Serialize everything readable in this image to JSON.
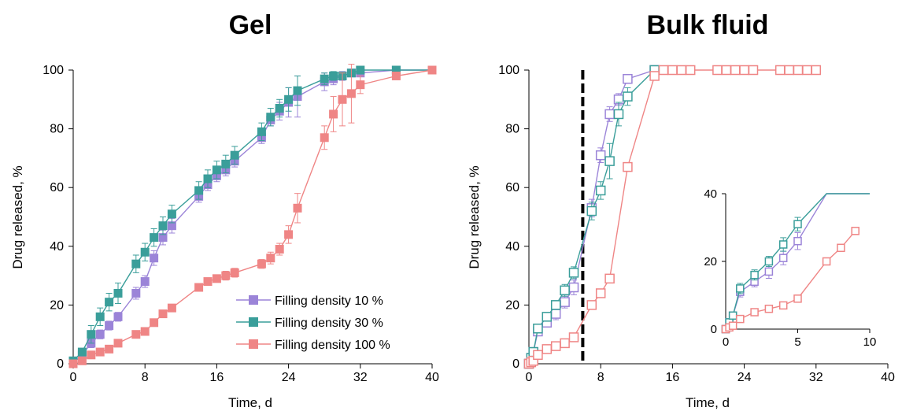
{
  "colors": {
    "fd10": "#9b84d8",
    "fd30": "#3a9e9a",
    "fd100": "#ef8585",
    "axis": "#000000",
    "vline": "#000000"
  },
  "chart_data": [
    {
      "type": "line",
      "title": "Gel",
      "xlabel": "Time, d",
      "ylabel": "Drug released, %",
      "xlim": [
        0,
        40
      ],
      "ylim": [
        0,
        100
      ],
      "xticks": [
        0,
        8,
        16,
        24,
        32,
        40
      ],
      "yticks": [
        0,
        20,
        40,
        60,
        80,
        100
      ],
      "grid": false,
      "marker": "filled-square",
      "legend_position": "bottom-right",
      "series": [
        {
          "name": "Filling density 10 %",
          "color_key": "fd10",
          "x": [
            0,
            1,
            2,
            3,
            4,
            5,
            7,
            8,
            9,
            10,
            11,
            14,
            15,
            16,
            17,
            18,
            21,
            22,
            23,
            24,
            25,
            28,
            29,
            30,
            31,
            32,
            36,
            40
          ],
          "y": [
            0,
            3,
            7,
            10,
            13,
            16,
            24,
            28,
            36,
            43,
            47,
            57,
            61,
            64,
            66,
            69,
            77,
            83,
            86,
            89,
            91,
            96,
            97,
            98,
            99,
            99,
            100,
            100
          ],
          "err": [
            0,
            1,
            1.5,
            1.5,
            1.5,
            1.5,
            2,
            2,
            2.5,
            2.5,
            2.5,
            2,
            2,
            2,
            2,
            2,
            2,
            2,
            3,
            5,
            7,
            3,
            2,
            1.5,
            1,
            1,
            0,
            0
          ]
        },
        {
          "name": "Filling density 30 %",
          "color_key": "fd30",
          "x": [
            0,
            1,
            2,
            3,
            4,
            5,
            7,
            8,
            9,
            10,
            11,
            14,
            15,
            16,
            17,
            18,
            21,
            22,
            23,
            24,
            25,
            28,
            29,
            30,
            31,
            32,
            36,
            40
          ],
          "y": [
            1,
            4,
            10,
            16,
            21,
            24,
            34,
            38,
            43,
            47,
            51,
            59,
            63,
            66,
            68,
            71,
            79,
            84,
            87,
            90,
            93,
            97,
            98,
            98,
            99,
            100,
            100,
            100
          ],
          "err": [
            0,
            1,
            3,
            3,
            3,
            3.5,
            3,
            3,
            3,
            3,
            3,
            3,
            3,
            3,
            3,
            3,
            3,
            3,
            3,
            4,
            5,
            2,
            1.5,
            1,
            1,
            0.5,
            0,
            0
          ]
        },
        {
          "name": "Filling density 100 %",
          "color_key": "fd100",
          "x": [
            0,
            1,
            2,
            3,
            4,
            5,
            7,
            8,
            9,
            10,
            11,
            14,
            15,
            16,
            17,
            18,
            21,
            22,
            23,
            24,
            25,
            28,
            29,
            30,
            31,
            32,
            36,
            40
          ],
          "y": [
            0,
            1,
            3,
            4,
            5,
            7,
            10,
            11,
            14,
            17,
            19,
            26,
            28,
            29,
            30,
            31,
            34,
            36,
            39,
            44,
            53,
            77,
            85,
            90,
            92,
            95,
            98,
            100
          ],
          "err": [
            0,
            0.5,
            0.5,
            0.5,
            0.5,
            0.5,
            1,
            1,
            1,
            1,
            1,
            1,
            1,
            1,
            1.5,
            1.5,
            1.5,
            2,
            2,
            3,
            5,
            4,
            6,
            9,
            10,
            3,
            1,
            0
          ]
        }
      ],
      "legend": [
        {
          "label": "Filling density 10 %",
          "color_key": "fd10"
        },
        {
          "label": "Filling density 30 %",
          "color_key": "fd30"
        },
        {
          "label": "Filling density 100 %",
          "color_key": "fd100"
        }
      ]
    },
    {
      "type": "line",
      "title": "Bulk fluid",
      "xlabel": "Time, d",
      "ylabel": "Drug released, %",
      "xlim": [
        0,
        40
      ],
      "ylim": [
        0,
        100
      ],
      "xticks": [
        0,
        8,
        16,
        24,
        32,
        40
      ],
      "yticks": [
        0,
        20,
        40,
        60,
        80,
        100
      ],
      "grid": false,
      "marker": "open-square",
      "vertical_line_x": 6,
      "series": [
        {
          "name": "Filling density 10 %",
          "color_key": "fd10",
          "x": [
            0,
            0.25,
            0.5,
            1,
            2,
            3,
            4,
            5,
            7,
            8,
            9,
            10,
            11,
            14
          ],
          "y": [
            0,
            2,
            4,
            11,
            14,
            17,
            21,
            26,
            53,
            71,
            85,
            90,
            97,
            100
          ],
          "err": [
            0,
            0.5,
            1,
            1.5,
            1.5,
            2,
            2,
            2.5,
            3,
            2.5,
            2.5,
            2,
            1.5,
            0
          ]
        },
        {
          "name": "Filling density 30 %",
          "color_key": "fd30",
          "x": [
            0,
            0.25,
            0.5,
            1,
            2,
            3,
            4,
            5,
            7,
            8,
            9,
            10,
            11,
            14
          ],
          "y": [
            0,
            2,
            4,
            12,
            16,
            20,
            25,
            31,
            52,
            59,
            69,
            85,
            91,
            100
          ],
          "err": [
            0,
            0.5,
            1,
            1.5,
            1.5,
            1.5,
            2,
            2,
            3,
            3,
            6,
            4,
            3,
            0
          ]
        },
        {
          "name": "Filling density 100 %",
          "color_key": "fd100",
          "x": [
            0,
            0.25,
            0.5,
            1,
            2,
            3,
            4,
            5,
            7,
            8,
            9,
            11,
            14,
            15,
            16,
            17,
            18,
            21,
            22,
            23,
            24,
            25,
            28,
            29,
            30,
            31,
            32
          ],
          "y": [
            0,
            0.5,
            1,
            3,
            5,
            6,
            7,
            9,
            20,
            24,
            29,
            67,
            98,
            100,
            100,
            100,
            100,
            100,
            100,
            100,
            100,
            100,
            100,
            100,
            100,
            100,
            100
          ],
          "err": [
            0,
            0,
            0.5,
            0.5,
            0.5,
            0.5,
            0.5,
            1,
            1,
            1,
            1,
            1,
            1,
            0,
            0,
            0,
            0,
            0,
            0,
            0,
            0,
            0,
            0,
            0,
            0,
            0,
            0
          ]
        }
      ],
      "inset": {
        "xlim": [
          0,
          10
        ],
        "ylim": [
          0,
          40
        ],
        "xticks": [
          0,
          5,
          10
        ],
        "yticks": [
          0,
          20,
          40
        ]
      }
    }
  ]
}
